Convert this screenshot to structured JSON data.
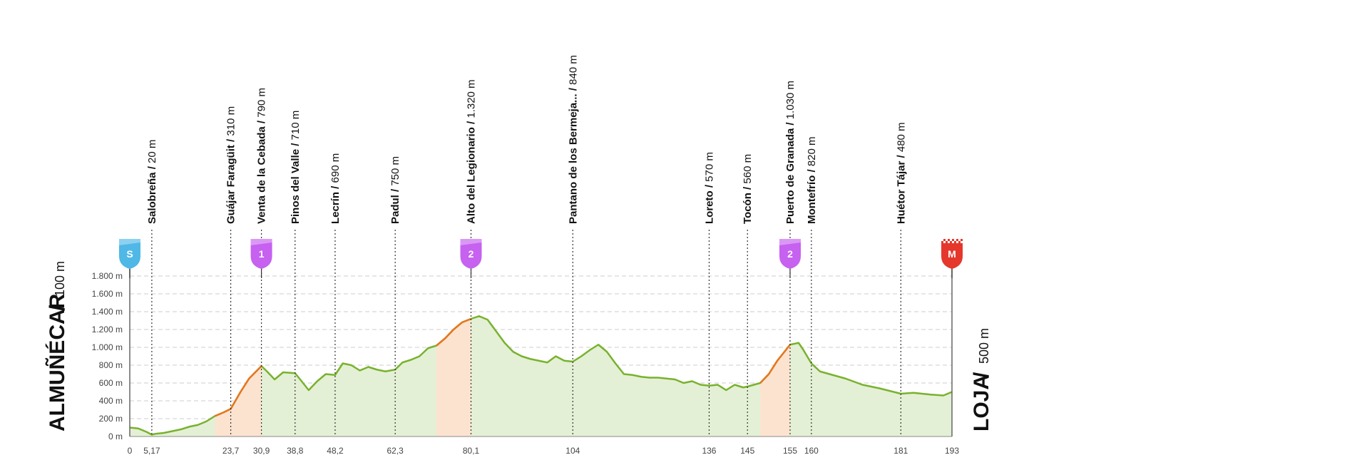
{
  "chart_data": {
    "type": "area",
    "title": "",
    "xlabel": "",
    "ylabel": "",
    "xlim": [
      0,
      193
    ],
    "ylim": [
      0,
      1800
    ],
    "grid": true,
    "y_ticks": [
      0,
      200,
      400,
      600,
      800,
      1000,
      1200,
      1400,
      1600,
      1800
    ],
    "y_tick_labels": [
      "0 m",
      "200 m",
      "400 m",
      "600 m",
      "800 m",
      "1.000 m",
      "1.200 m",
      "1.400 m",
      "1.600 m",
      "1.800 m"
    ],
    "x_ticks": [
      0,
      5.17,
      23.7,
      30.9,
      38.8,
      48.2,
      62.3,
      80.1,
      104,
      136,
      145,
      155,
      160,
      181,
      193
    ],
    "x_tick_labels": [
      "0",
      "5,17",
      "23,7",
      "30,9",
      "38,8",
      "48,2",
      "62,3",
      "80,1",
      "104",
      "136",
      "145",
      "155",
      "160",
      "181",
      "193"
    ],
    "start": {
      "name": "ALMUÑÉCAR",
      "altitude": "100 m"
    },
    "finish": {
      "name": "LOJA",
      "altitude": "500 m"
    },
    "series": [
      {
        "x": [
          0,
          2,
          4,
          5.17,
          6,
          8,
          10,
          12,
          14,
          16,
          18,
          20,
          22,
          23.7,
          26,
          28,
          30.9,
          32,
          34,
          36,
          38.8,
          40,
          42,
          44,
          46,
          48.2,
          50,
          52,
          54,
          56,
          58,
          60,
          62.3,
          64,
          66,
          68,
          70,
          72,
          74,
          76,
          78,
          80.1,
          82,
          84,
          86,
          88,
          90,
          92,
          94,
          96,
          98,
          100,
          102,
          104,
          106,
          108,
          110,
          112,
          114,
          116,
          118,
          120,
          122,
          124,
          126,
          128,
          130,
          132,
          134,
          136,
          138,
          140,
          142,
          144,
          145,
          148,
          150,
          152,
          155,
          157,
          158,
          160,
          162,
          165,
          168,
          172,
          176,
          181,
          184,
          188,
          191,
          193
        ],
        "values": [
          100,
          90,
          50,
          20,
          30,
          40,
          60,
          80,
          110,
          130,
          170,
          230,
          270,
          310,
          500,
          650,
          790,
          740,
          640,
          720,
          710,
          640,
          520,
          620,
          700,
          690,
          820,
          800,
          740,
          780,
          750,
          730,
          750,
          830,
          860,
          900,
          990,
          1020,
          1100,
          1200,
          1280,
          1320,
          1350,
          1310,
          1180,
          1050,
          950,
          900,
          870,
          850,
          830,
          900,
          850,
          840,
          900,
          970,
          1030,
          950,
          820,
          700,
          690,
          670,
          660,
          660,
          650,
          640,
          600,
          620,
          580,
          570,
          580,
          520,
          580,
          550,
          560,
          600,
          700,
          850,
          1030,
          1050,
          980,
          820,
          730,
          690,
          650,
          580,
          540,
          480,
          490,
          470,
          460,
          500
        ]
      }
    ],
    "points": [
      {
        "km": 5.17,
        "alt": 20,
        "name": "Salobreña",
        "altlabel": "20 m"
      },
      {
        "km": 23.7,
        "alt": 310,
        "name": "Guájar Faragüit",
        "altlabel": "310 m"
      },
      {
        "km": 30.9,
        "alt": 790,
        "name": "Venta de la Cebada",
        "altlabel": "790 m"
      },
      {
        "km": 38.8,
        "alt": 710,
        "name": "Pinos del Valle",
        "altlabel": "710 m"
      },
      {
        "km": 48.2,
        "alt": 690,
        "name": "Lecrín",
        "altlabel": "690 m"
      },
      {
        "km": 62.3,
        "alt": 750,
        "name": "Padul",
        "altlabel": "750 m"
      },
      {
        "km": 80.1,
        "alt": 1320,
        "name": "Alto del Legionario",
        "altlabel": "1.320 m"
      },
      {
        "km": 104,
        "alt": 840,
        "name": "Pantano de los Bermeja...",
        "altlabel": "840 m"
      },
      {
        "km": 136,
        "alt": 570,
        "name": "Loreto",
        "altlabel": "570 m"
      },
      {
        "km": 145,
        "alt": 560,
        "name": "Tocón",
        "altlabel": "560 m"
      },
      {
        "km": 155,
        "alt": 1030,
        "name": "Puerto de Granada",
        "altlabel": "1.030 m"
      },
      {
        "km": 160,
        "alt": 820,
        "name": "Montefrío",
        "altlabel": "820 m"
      },
      {
        "km": 181,
        "alt": 480,
        "name": "Huétor Tájar",
        "altlabel": "480 m"
      }
    ],
    "markers": [
      {
        "km": 0,
        "label": "S",
        "color": "#4FB8E6",
        "kind": "start"
      },
      {
        "km": 30.9,
        "label": "1",
        "color": "#C661F0",
        "kind": "climb"
      },
      {
        "km": 80.1,
        "label": "2",
        "color": "#C661F0",
        "kind": "climb"
      },
      {
        "km": 155,
        "label": "2",
        "color": "#C661F0",
        "kind": "climb"
      },
      {
        "km": 193,
        "label": "M",
        "color": "#E5372C",
        "kind": "finish"
      }
    ],
    "colors": {
      "profile_line": "#78B22E",
      "climb_line": "#E8761F",
      "profile_fill": "#E4F0D5",
      "climb_fill": "#FCE3D0",
      "grid": "#CCCCCC"
    }
  }
}
